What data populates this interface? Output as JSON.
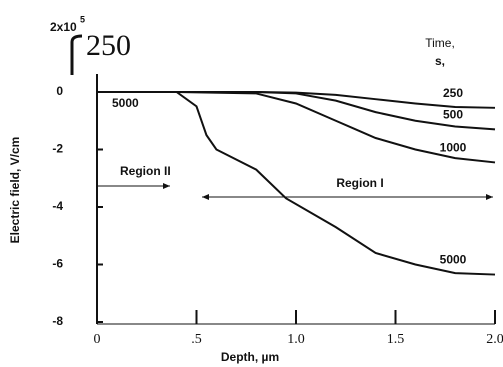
{
  "chart_data": {
    "type": "line",
    "x_label": "Depth, µm",
    "y_label": "Electric field, V/cm",
    "scale_base": "2x10",
    "scale_exponent": "5",
    "corner_note": "250",
    "legend_title": [
      "Time,",
      "s,"
    ],
    "annotations": [
      {
        "text": "5000"
      },
      {
        "text": "Region II"
      },
      {
        "text": "Region I"
      }
    ],
    "xlim": [
      0,
      2
    ],
    "ylim": [
      -8,
      0
    ],
    "xticks": [
      0,
      {
        "value": 0.5,
        "label": ".5"
      },
      {
        "value": 1,
        "label": "1.0"
      },
      1.5,
      {
        "value": 2,
        "label": "2.0"
      }
    ],
    "yticks": [
      0,
      -2,
      -4,
      -6,
      -8
    ],
    "series": [
      {
        "name": "250",
        "color": "#111111",
        "x": [
          0,
          0.4,
          0.8,
          1.0,
          1.2,
          1.4,
          1.6,
          1.8,
          2.0
        ],
        "values": [
          0,
          0,
          0,
          -0.02,
          -0.1,
          -0.25,
          -0.4,
          -0.52,
          -0.55
        ]
      },
      {
        "name": "500",
        "color": "#111111",
        "x": [
          0,
          0.4,
          0.8,
          1.0,
          1.2,
          1.4,
          1.6,
          1.8,
          2.0
        ],
        "values": [
          0,
          0,
          0,
          -0.05,
          -0.3,
          -0.7,
          -1.0,
          -1.2,
          -1.3
        ]
      },
      {
        "name": "1000",
        "color": "#111111",
        "x": [
          0,
          0.4,
          0.8,
          1.0,
          1.2,
          1.4,
          1.6,
          1.8,
          2.0
        ],
        "values": [
          0,
          0,
          -0.05,
          -0.4,
          -1.0,
          -1.6,
          -2.0,
          -2.3,
          -2.45
        ]
      },
      {
        "name": "5000",
        "color": "#111111",
        "x": [
          0,
          0.4,
          0.5,
          0.55,
          0.6,
          0.8,
          0.95,
          1.2,
          1.4,
          1.6,
          1.8,
          2.0
        ],
        "values": [
          0,
          0,
          -0.5,
          -1.5,
          -2.0,
          -2.7,
          -3.7,
          -4.7,
          -5.6,
          -6.0,
          -6.3,
          -6.35
        ]
      }
    ]
  }
}
